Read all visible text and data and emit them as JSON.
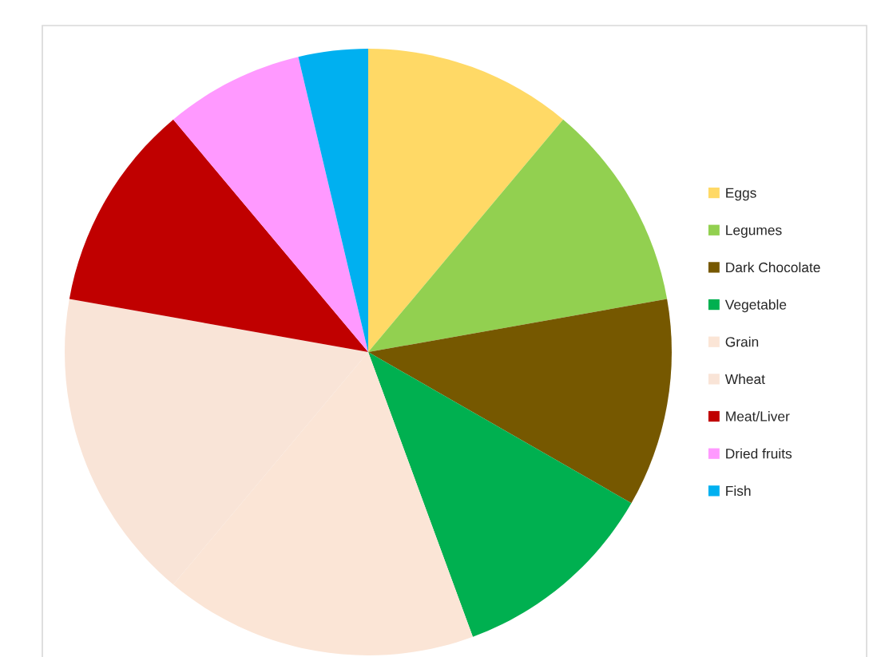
{
  "chart_data": {
    "type": "pie",
    "categories": [
      "Eggs",
      "Legumes",
      "Dark Chocolate",
      "Vegetable",
      "Grain",
      "Wheat",
      "Meat/Liver",
      "Dried fruits",
      "Fish"
    ],
    "values": [
      11.1,
      11.1,
      11.1,
      11.1,
      16.7,
      16.7,
      11.1,
      7.4,
      3.7
    ],
    "colors": [
      "#ffd966",
      "#92d050",
      "#765800",
      "#00b050",
      "#fbe5d6",
      "#f9e4d7",
      "#c00000",
      "#ff99ff",
      "#00b0f0"
    ],
    "legend": "right"
  }
}
